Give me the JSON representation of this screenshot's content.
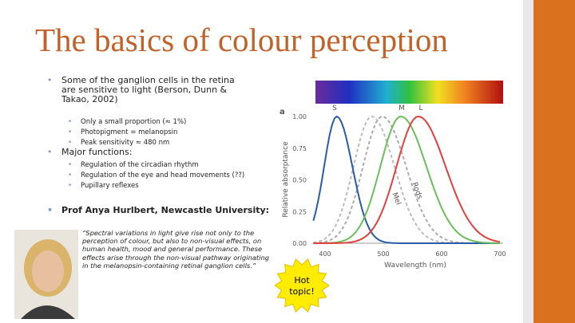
{
  "title": "The basics of colour perception",
  "bullets": [
    {
      "text": "Some of the ganglion cells in the retina are sensitive to light (Berson, Dunn & Takao, 2002)",
      "sub": [
        "Only a small proportion (≈ 1%)",
        "Photopigment = melanopsin",
        "Peak sensitivity ≈ 480 nm"
      ]
    },
    {
      "text": "Major functions:",
      "sub": [
        "Regulation of the circadian rhythm",
        "Regulation of the eye and head movements (??)",
        "Pupillary reflexes"
      ]
    },
    {
      "text": "Prof Anya Hurlbert, Newcastle University:"
    }
  ],
  "quote": "“Spectral variations in light give rise not only to the perception of colour, but also to non-visual effects, on human health, mood and general performance. These effects arise through the non-visual pathway originating in the melanopsin-containing retinal ganglion cells.”",
  "figure": {
    "panel": "a",
    "y_label": "Relative absorptance",
    "x_label": "Wavelength (nm)",
    "yticks": [
      "1.00",
      "0.75",
      "0.50",
      "0.25",
      "0.00"
    ],
    "xticks": [
      "400",
      "500",
      "600",
      "700"
    ],
    "curve_labels": [
      "S",
      "M",
      "L",
      "Rods",
      "Mel"
    ]
  },
  "badge": "Hot topic!"
}
